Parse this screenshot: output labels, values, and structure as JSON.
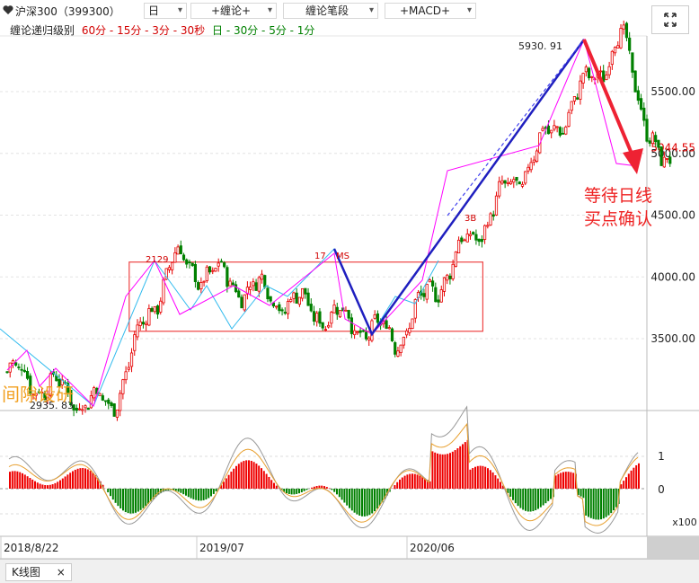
{
  "toolbar": {
    "symbol": "沪深300（399300）",
    "period": "日",
    "indicator1": "+缠论+",
    "indicator2": "缠论笔段",
    "indicator3": "+MACD+",
    "arrow": "▾"
  },
  "levels": {
    "prefix": "缠论递归级别",
    "red": "60分 - 15分 - 3分 - 30秒",
    "green": "日 - 30分 - 5分 - 1分"
  },
  "chart_data": [
    {
      "type": "candlestick",
      "title": "沪深300",
      "x_labels": [
        "2018/8/22",
        "2019/07",
        "2020/06"
      ],
      "y_ticks": [
        "5500.00",
        "5000.00",
        "4500.00",
        "4000.00",
        "3500.00"
      ],
      "ylim": [
        2900,
        6000
      ],
      "current_price": "5044.55",
      "annotations": {
        "high": "5930. 91",
        "low": "2935. 83",
        "peak_left": "2129",
        "peak_mid": "17",
        "peak_mid_suffix": "MS",
        "buy_label": "3B",
        "watermark": "间隙设研",
        "note_line1": "等待日线",
        "note_line2": "买点确认"
      },
      "stroke_points": [
        {
          "date": "2018/8",
          "price": 3230
        },
        {
          "date": "2019/1",
          "price": 2935.83
        },
        {
          "date": "2019/4",
          "price": 4129
        },
        {
          "date": "2020/3",
          "price": 3503
        },
        {
          "date": "2021/2",
          "price": 5930.91
        },
        {
          "date": "2021/4",
          "price": 4850
        }
      ],
      "pivot_zone": {
        "from": "2019/2",
        "to": "2020/7",
        "low": 3560,
        "high": 4120
      },
      "colors": {
        "up": "#e60000",
        "down": "#008000",
        "stroke": "#ff00ff",
        "segment": "#1f1fbf",
        "zone": "#ee4444",
        "note": "#ee2222"
      }
    },
    {
      "type": "macd",
      "y_ticks": [
        "1",
        "0"
      ],
      "unit": "x100",
      "colors": {
        "positive": "#ee0000",
        "negative": "#008000",
        "dif": "#999999",
        "dea": "#e8a030"
      }
    }
  ],
  "bottom": {
    "tab_label": "K线图",
    "tab_close": "×"
  }
}
